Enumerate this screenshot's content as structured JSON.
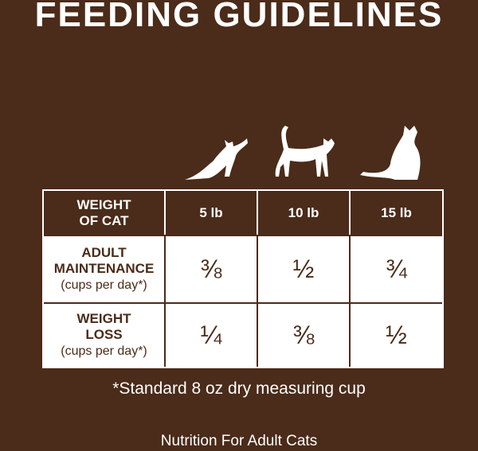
{
  "title": "FEEDING GUIDELINES",
  "table": {
    "header": [
      [
        "WEIGHT",
        "OF CAT"
      ],
      "5 lb",
      "10 lb",
      "15 lb"
    ],
    "rows": [
      {
        "label": [
          "ADULT",
          "MAINTENANCE"
        ],
        "unit": "(cups per day*)",
        "cells": [
          "⅜",
          "½",
          "¾"
        ]
      },
      {
        "label": [
          "WEIGHT",
          "LOSS"
        ],
        "unit": "(cups per day*)",
        "cells": [
          "¼",
          "⅜",
          "½"
        ]
      }
    ]
  },
  "footnote": "*Standard 8 oz dry measuring cup",
  "footer": "Nutrition For Adult Cats"
}
